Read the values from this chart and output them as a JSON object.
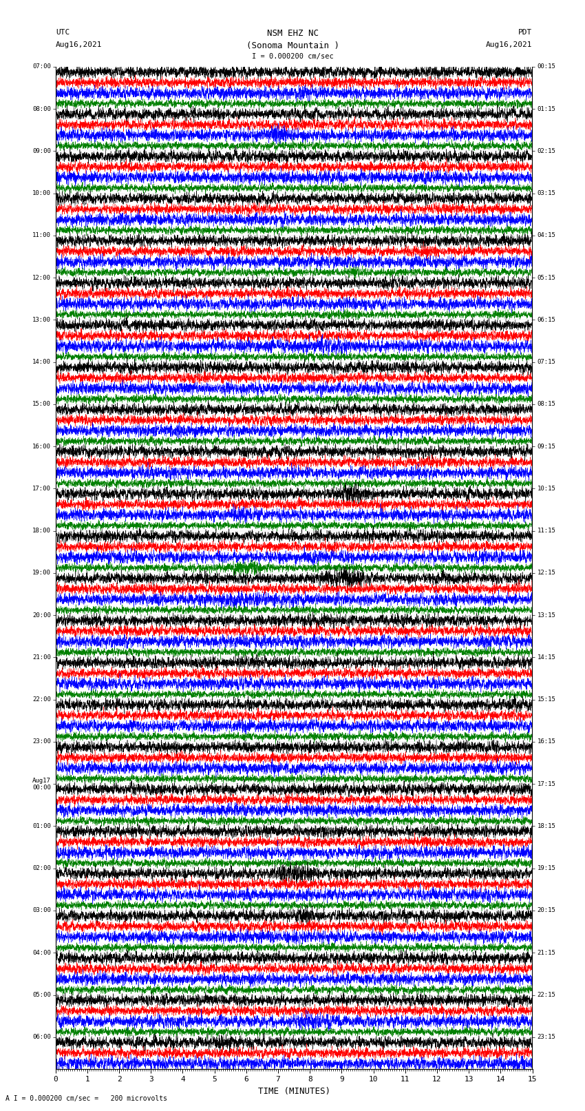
{
  "title_line1": "NSM EHZ NC",
  "title_line2": "(Sonoma Mountain )",
  "scale_bar": "I = 0.000200 cm/sec",
  "left_header_top": "UTC",
  "left_header_bot": "Aug16,2021",
  "right_header_top": "PDT",
  "right_header_bot": "Aug16,2021",
  "footer_note": "A I = 0.000200 cm/sec =   200 microvolts",
  "xlabel": "TIME (MINUTES)",
  "xmin": 0,
  "xmax": 15,
  "xticks": [
    0,
    1,
    2,
    3,
    4,
    5,
    6,
    7,
    8,
    9,
    10,
    11,
    12,
    13,
    14,
    15
  ],
  "colors": [
    "black",
    "red",
    "blue",
    "green"
  ],
  "bg_color": "white",
  "utc_times_left": [
    "07:00",
    "",
    "",
    "",
    "08:00",
    "",
    "",
    "",
    "09:00",
    "",
    "",
    "",
    "10:00",
    "",
    "",
    "",
    "11:00",
    "",
    "",
    "",
    "12:00",
    "",
    "",
    "",
    "13:00",
    "",
    "",
    "",
    "14:00",
    "",
    "",
    "",
    "15:00",
    "",
    "",
    "",
    "16:00",
    "",
    "",
    "",
    "17:00",
    "",
    "",
    "",
    "18:00",
    "",
    "",
    "",
    "19:00",
    "",
    "",
    "",
    "20:00",
    "",
    "",
    "",
    "21:00",
    "",
    "",
    "",
    "22:00",
    "",
    "",
    "",
    "23:00",
    "",
    "",
    "",
    "Aug17\n00:00",
    "",
    "",
    "",
    "01:00",
    "",
    "",
    "",
    "02:00",
    "",
    "",
    "",
    "03:00",
    "",
    "",
    "",
    "04:00",
    "",
    "",
    "",
    "05:00",
    "",
    "",
    "",
    "06:00",
    "",
    ""
  ],
  "pdt_times_right": [
    "00:15",
    "",
    "",
    "",
    "01:15",
    "",
    "",
    "",
    "02:15",
    "",
    "",
    "",
    "03:15",
    "",
    "",
    "",
    "04:15",
    "",
    "",
    "",
    "05:15",
    "",
    "",
    "",
    "06:15",
    "",
    "",
    "",
    "07:15",
    "",
    "",
    "",
    "08:15",
    "",
    "",
    "",
    "09:15",
    "",
    "",
    "",
    "10:15",
    "",
    "",
    "",
    "11:15",
    "",
    "",
    "",
    "12:15",
    "",
    "",
    "",
    "13:15",
    "",
    "",
    "",
    "14:15",
    "",
    "",
    "",
    "15:15",
    "",
    "",
    "",
    "16:15",
    "",
    "",
    "",
    "17:15",
    "",
    "",
    "",
    "18:15",
    "",
    "",
    "",
    "19:15",
    "",
    "",
    "",
    "20:15",
    "",
    "",
    "",
    "21:15",
    "",
    "",
    "",
    "22:15",
    "",
    "",
    "",
    "23:15",
    "",
    ""
  ],
  "fig_width": 8.5,
  "fig_height": 16.13,
  "dpi": 100
}
